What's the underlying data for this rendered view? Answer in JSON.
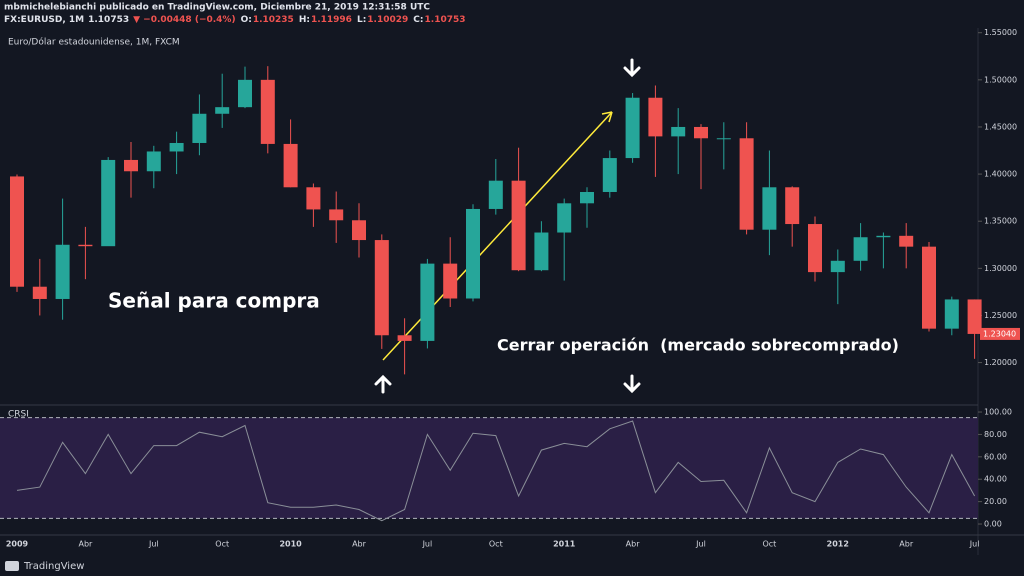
{
  "header": {
    "author": "mbmichelebianchi publicado en TradingView.com, Diciembre 21, 2019 12:31:58 UTC",
    "symbol": "FX:EURUSD, 1M",
    "last": "1.10753",
    "change": "▼ −0.00448 (−0.4%)",
    "ohlc": [
      {
        "k": "O:",
        "v": "1.10235"
      },
      {
        "k": "H:",
        "v": "1.11996"
      },
      {
        "k": "L:",
        "v": "1.10029"
      },
      {
        "k": "C:",
        "v": "1.10753"
      }
    ]
  },
  "annotations": {
    "buy": "Señal para compra",
    "close": "Cerrar operación  (mercado sobrecomprado)"
  },
  "footer": "TradingView",
  "chart_data": [
    {
      "type": "candlestick",
      "title": "Euro/Dólar estadounidense, 1M, FXCM",
      "categories": [
        "2009",
        null,
        null,
        "Abr",
        null,
        null,
        "Jul",
        null,
        null,
        "Oct",
        null,
        null,
        "2010",
        null,
        null,
        "Abr",
        null,
        null,
        "Jul",
        null,
        null,
        "Oct",
        null,
        null,
        "2011",
        null,
        null,
        "Abr",
        null,
        null,
        "Jul",
        null,
        null,
        "Oct",
        null,
        null,
        "2012",
        null,
        null,
        "Abr",
        null,
        null,
        "Jul"
      ],
      "open": [
        1.3975,
        1.2805,
        1.2675,
        1.325,
        1.3235,
        1.415,
        1.403,
        1.424,
        1.433,
        1.464,
        1.471,
        1.5,
        1.432,
        1.386,
        1.3625,
        1.351,
        1.33,
        1.229,
        1.223,
        1.305,
        1.268,
        1.363,
        1.393,
        1.298,
        1.338,
        1.369,
        1.381,
        1.417,
        1.481,
        1.44,
        1.45,
        1.438,
        1.438,
        1.341,
        1.386,
        1.347,
        1.296,
        1.308,
        1.333,
        1.3345,
        1.323,
        1.236,
        1.267
      ],
      "high": [
        1.3995,
        1.31,
        1.374,
        1.344,
        1.418,
        1.434,
        1.43,
        1.445,
        1.4845,
        1.5065,
        1.514,
        1.5145,
        1.458,
        1.39,
        1.3815,
        1.369,
        1.336,
        1.247,
        1.31,
        1.333,
        1.368,
        1.416,
        1.428,
        1.35,
        1.374,
        1.386,
        1.425,
        1.486,
        1.494,
        1.47,
        1.453,
        1.455,
        1.455,
        1.425,
        1.387,
        1.355,
        1.32,
        1.348,
        1.338,
        1.348,
        1.328,
        1.27,
        1.267
      ],
      "low": [
        1.275,
        1.25,
        1.2455,
        1.2885,
        1.324,
        1.375,
        1.385,
        1.4,
        1.42,
        1.449,
        1.47,
        1.422,
        1.386,
        1.344,
        1.327,
        1.3115,
        1.2145,
        1.1875,
        1.215,
        1.259,
        1.265,
        1.357,
        1.297,
        1.297,
        1.287,
        1.343,
        1.375,
        1.412,
        1.397,
        1.4,
        1.384,
        1.405,
        1.336,
        1.314,
        1.323,
        1.286,
        1.262,
        1.2975,
        1.3,
        1.3,
        1.233,
        1.229,
        1.204
      ],
      "close": [
        1.2805,
        1.2675,
        1.325,
        1.3235,
        1.415,
        1.403,
        1.424,
        1.433,
        1.464,
        1.471,
        1.5,
        1.432,
        1.386,
        1.3625,
        1.351,
        1.33,
        1.229,
        1.223,
        1.305,
        1.268,
        1.363,
        1.393,
        1.298,
        1.338,
        1.369,
        1.381,
        1.417,
        1.481,
        1.44,
        1.45,
        1.438,
        1.438,
        1.341,
        1.386,
        1.347,
        1.296,
        1.308,
        1.333,
        1.3345,
        1.323,
        1.236,
        1.267,
        1.2304
      ],
      "close_label": "1.23040",
      "up_color": "#26a69a",
      "down_color": "#ef5350",
      "ylim": [
        1.155,
        1.555
      ],
      "yticks": [
        {
          "value": 1.2,
          "label": "1.20000"
        },
        {
          "value": 1.25,
          "label": "1.25000"
        },
        {
          "value": 1.3,
          "label": "1.30000"
        },
        {
          "value": 1.35,
          "label": "1.35000"
        },
        {
          "value": 1.4,
          "label": "1.40000"
        },
        {
          "value": 1.45,
          "label": "1.45000"
        },
        {
          "value": 1.5,
          "label": "1.50000"
        },
        {
          "value": 1.55,
          "label": "1.55000"
        }
      ],
      "grid": false
    },
    {
      "type": "line",
      "title": "CRSI",
      "color": "#8a8f98",
      "values": [
        30,
        33,
        73,
        45,
        80,
        45,
        70,
        70,
        82,
        78,
        88,
        19,
        15,
        15,
        17,
        13,
        3,
        13,
        80,
        48,
        81,
        79,
        25,
        66,
        72,
        69,
        85,
        92,
        28,
        55,
        38,
        39,
        10,
        68,
        28,
        20,
        55,
        67,
        62,
        33,
        10,
        62,
        25
      ],
      "ylim": [
        -9.8,
        103.6
      ],
      "yticks": [
        {
          "value": 0,
          "label": "0.00"
        },
        {
          "value": 20,
          "label": "20.00"
        },
        {
          "value": 40,
          "label": "40.00"
        },
        {
          "value": 60,
          "label": "60.00"
        },
        {
          "value": 80,
          "label": "80.00"
        },
        {
          "value": 100,
          "label": "100.00"
        }
      ],
      "bands": [
        5,
        95
      ],
      "band_color": "#2a1f45"
    }
  ]
}
